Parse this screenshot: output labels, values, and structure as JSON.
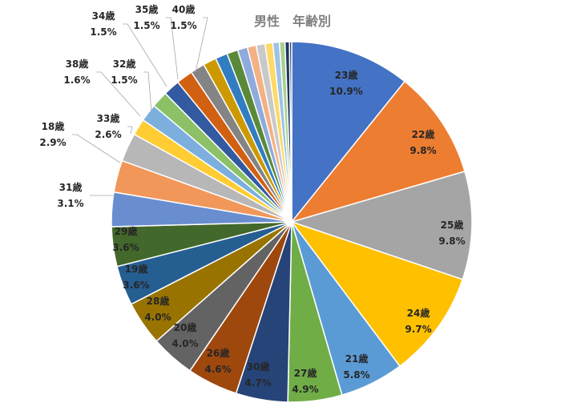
{
  "chart_data": {
    "type": "pie",
    "title": "男性　年齢別",
    "slices": [
      {
        "label": "23歳",
        "pct": "10.9%",
        "value": 10.9,
        "color": "#4472C4",
        "shown": true
      },
      {
        "label": "22歳",
        "pct": "9.8%",
        "value": 9.8,
        "color": "#ED7D31",
        "shown": true
      },
      {
        "label": "25歳",
        "pct": "9.8%",
        "value": 9.8,
        "color": "#A5A5A5",
        "shown": true
      },
      {
        "label": "24歳",
        "pct": "9.7%",
        "value": 9.7,
        "color": "#FFC000",
        "shown": true
      },
      {
        "label": "21歳",
        "pct": "5.8%",
        "value": 5.8,
        "color": "#5B9BD5",
        "shown": true
      },
      {
        "label": "27歳",
        "pct": "4.9%",
        "value": 4.9,
        "color": "#70AD47",
        "shown": true
      },
      {
        "label": "30歳",
        "pct": "4.7%",
        "value": 4.7,
        "color": "#264478",
        "shown": true
      },
      {
        "label": "26歳",
        "pct": "4.6%",
        "value": 4.6,
        "color": "#9E480E",
        "shown": true
      },
      {
        "label": "20歳",
        "pct": "4.0%",
        "value": 4.0,
        "color": "#636363",
        "shown": true
      },
      {
        "label": "28歳",
        "pct": "4.0%",
        "value": 4.0,
        "color": "#997300",
        "shown": true
      },
      {
        "label": "19歳",
        "pct": "3.6%",
        "value": 3.6,
        "color": "#255E91",
        "shown": true
      },
      {
        "label": "29歳",
        "pct": "3.6%",
        "value": 3.6,
        "color": "#43682B",
        "shown": true
      },
      {
        "label": "31歳",
        "pct": "3.1%",
        "value": 3.1,
        "color": "#698ED0",
        "shown": true
      },
      {
        "label": "18歳",
        "pct": "2.9%",
        "value": 2.9,
        "color": "#F1975A",
        "shown": true
      },
      {
        "label": "33歳",
        "pct": "2.6%",
        "value": 2.6,
        "color": "#B7B7B7",
        "shown": true
      },
      {
        "label": "32歳",
        "pct": "1.5%",
        "value": 1.5,
        "color": "#FFCD33",
        "shown": true
      },
      {
        "label": "38歳",
        "pct": "1.6%",
        "value": 1.6,
        "color": "#7CAFDD",
        "shown": true
      },
      {
        "label": "34歳",
        "pct": "1.5%",
        "value": 1.5,
        "color": "#8CC168",
        "shown": true
      },
      {
        "label": "35歳",
        "pct": "1.5%",
        "value": 1.5,
        "color": "#335AA1",
        "shown": true
      },
      {
        "label": "40歳",
        "pct": "1.5%",
        "value": 1.5,
        "color": "#D26012",
        "shown": true
      },
      {
        "label": "",
        "pct": "",
        "value": 1.3,
        "color": "#848484",
        "shown": false
      },
      {
        "label": "",
        "pct": "",
        "value": 1.2,
        "color": "#CC9A00",
        "shown": false
      },
      {
        "label": "",
        "pct": "",
        "value": 1.1,
        "color": "#327DC2",
        "shown": false
      },
      {
        "label": "",
        "pct": "",
        "value": 1.0,
        "color": "#5A8A39",
        "shown": false
      },
      {
        "label": "",
        "pct": "",
        "value": 0.9,
        "color": "#8FAADC",
        "shown": false
      },
      {
        "label": "",
        "pct": "",
        "value": 0.8,
        "color": "#F4B183",
        "shown": false
      },
      {
        "label": "",
        "pct": "",
        "value": 0.8,
        "color": "#C9C9C9",
        "shown": false
      },
      {
        "label": "",
        "pct": "",
        "value": 0.7,
        "color": "#FFD966",
        "shown": false
      },
      {
        "label": "",
        "pct": "",
        "value": 0.6,
        "color": "#9DC3E6",
        "shown": false
      },
      {
        "label": "",
        "pct": "",
        "value": 0.5,
        "color": "#A9D18E",
        "shown": false
      },
      {
        "label": "",
        "pct": "",
        "value": 0.4,
        "color": "#1F3864",
        "shown": false
      },
      {
        "label": "",
        "pct": "",
        "value": 0.2,
        "color": "#203864",
        "shown": false
      }
    ]
  }
}
